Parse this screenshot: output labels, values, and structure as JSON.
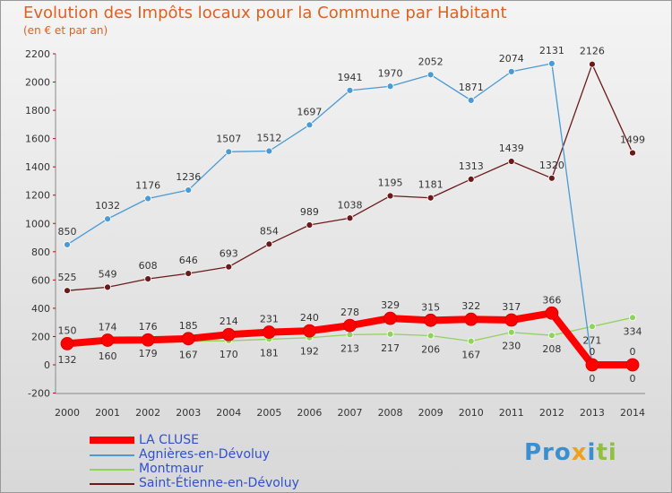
{
  "chart_data": {
    "type": "line",
    "title": "Evolution des Impôts locaux pour la Commune par Habitant",
    "subtitle": "(en € et par an)",
    "x": [
      2000,
      2001,
      2002,
      2003,
      2004,
      2005,
      2006,
      2007,
      2008,
      2009,
      2010,
      2011,
      2012,
      2013,
      2014
    ],
    "ylim": [
      -200,
      2200
    ],
    "yticks": [
      -200,
      0,
      200,
      400,
      600,
      800,
      1000,
      1200,
      1400,
      1600,
      1800,
      2000,
      2200
    ],
    "grid": false,
    "legend_placement": "bottom-left",
    "series": [
      {
        "name": "LA CLUSE",
        "color": "#ff0000",
        "values": [
          150,
          174,
          176,
          185,
          214,
          231,
          240,
          278,
          329,
          315,
          322,
          317,
          366,
          0,
          0
        ]
      },
      {
        "name": "Agnières-en-Dévoluy",
        "color": "#4a9ad4",
        "values": [
          850,
          1032,
          1176,
          1236,
          1507,
          1512,
          1697,
          1941,
          1970,
          2052,
          1871,
          2074,
          2131,
          0,
          0
        ]
      },
      {
        "name": "Montmaur",
        "color": "#8fd35a",
        "values": [
          132,
          160,
          179,
          167,
          170,
          181,
          192,
          213,
          217,
          206,
          167,
          230,
          208,
          271,
          334
        ]
      },
      {
        "name": "Saint-Étienne-en-Dévoluy",
        "color": "#6b1a1a",
        "values": [
          525,
          549,
          608,
          646,
          693,
          854,
          989,
          1038,
          1195,
          1181,
          1313,
          1439,
          1320,
          2126,
          1499
        ]
      }
    ]
  },
  "logo": "Proxiti"
}
